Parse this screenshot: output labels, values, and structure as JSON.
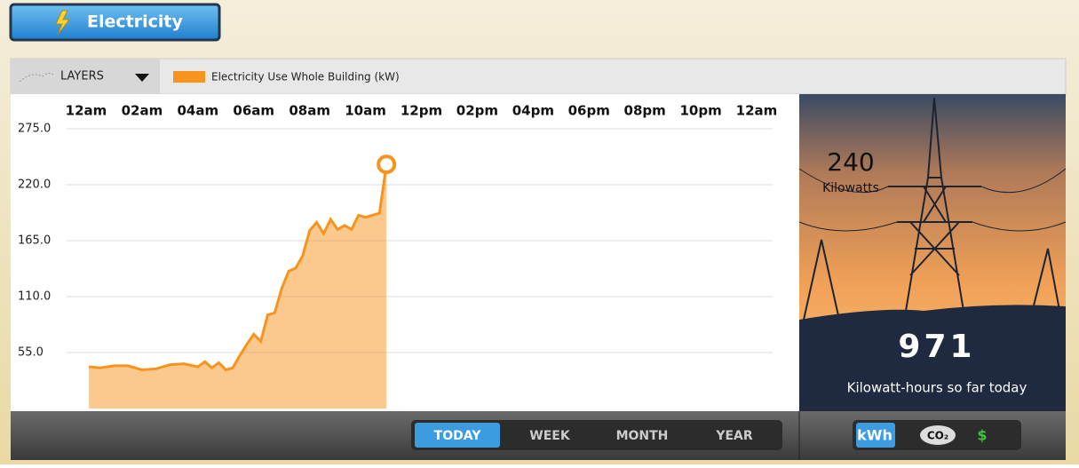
{
  "header": {
    "title": "Electricity"
  },
  "toolbar": {
    "layers": "LAYERS"
  },
  "chart_data": {
    "type": "area",
    "xlim": [
      0,
      24
    ],
    "xticks": [
      {
        "value": 0,
        "label": "12am"
      },
      {
        "value": 2,
        "label": "02am"
      },
      {
        "value": 4,
        "label": "04am"
      },
      {
        "value": 6,
        "label": "06am"
      },
      {
        "value": 8,
        "label": "08am"
      },
      {
        "value": 10,
        "label": "10am"
      },
      {
        "value": 12,
        "label": "12pm"
      },
      {
        "value": 14,
        "label": "02pm"
      },
      {
        "value": 16,
        "label": "04pm"
      },
      {
        "value": 18,
        "label": "06pm"
      },
      {
        "value": 20,
        "label": "08pm"
      },
      {
        "value": 22,
        "label": "10pm"
      },
      {
        "value": 24,
        "label": "12am"
      }
    ],
    "ylim": [
      0,
      275
    ],
    "yticks": [
      {
        "value": 55,
        "label": "55.0"
      },
      {
        "value": 110,
        "label": "110.0"
      },
      {
        "value": 165,
        "label": "165.0"
      },
      {
        "value": 220,
        "label": "220.0"
      },
      {
        "value": 275,
        "label": "275.0"
      }
    ],
    "grid": true,
    "series": [
      {
        "name": "Electricity Use Whole Building  (kW)",
        "color": "#f7941d",
        "x": [
          0.1,
          0.5,
          1.0,
          1.5,
          2.0,
          2.5,
          3.0,
          3.5,
          4.0,
          4.25,
          4.5,
          4.75,
          5.0,
          5.25,
          5.5,
          5.75,
          6.0,
          6.25,
          6.5,
          6.75,
          7.0,
          7.25,
          7.5,
          7.75,
          8.0,
          8.25,
          8.5,
          8.75,
          9.0,
          9.25,
          9.5,
          9.75,
          10.0,
          10.25,
          10.5,
          10.75
        ],
        "values": [
          41,
          40,
          42,
          42,
          38,
          39,
          43,
          44,
          41,
          46,
          40,
          45,
          38,
          40,
          52,
          63,
          73,
          66,
          92,
          94,
          118,
          135,
          138,
          150,
          175,
          183,
          172,
          186,
          176,
          180,
          176,
          190,
          188,
          190,
          192,
          240
        ]
      }
    ]
  },
  "summary": {
    "current_value": "240",
    "current_unit": "Kilowatts",
    "total_value": "971",
    "total_label": "Kilowatt-hours so far today"
  },
  "range_buttons": [
    "TODAY",
    "WEEK",
    "MONTH",
    "YEAR"
  ],
  "unit_buttons": [
    "kWh",
    "CO₂",
    "$"
  ]
}
